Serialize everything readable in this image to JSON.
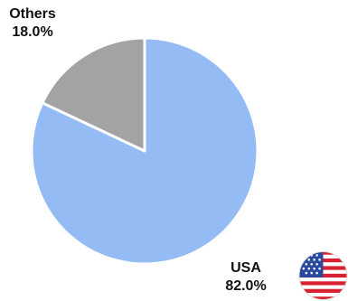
{
  "chart_data": {
    "type": "pie",
    "start": "top, clockwise",
    "slices": [
      {
        "label": "USA",
        "value": 82.0,
        "display": "82.0%",
        "color": "#94bbf3"
      },
      {
        "label": "Others",
        "value": 18.0,
        "display": "18.0%",
        "color": "#a3a3a3"
      }
    ],
    "slice_border_color": "#ffffff",
    "legend": "none",
    "annotations": [
      "usa-flag-icon"
    ]
  },
  "labels": {
    "usa": {
      "name": "USA",
      "pct": "82.0%"
    },
    "others": {
      "name": "Others",
      "pct": "18.0%"
    }
  }
}
